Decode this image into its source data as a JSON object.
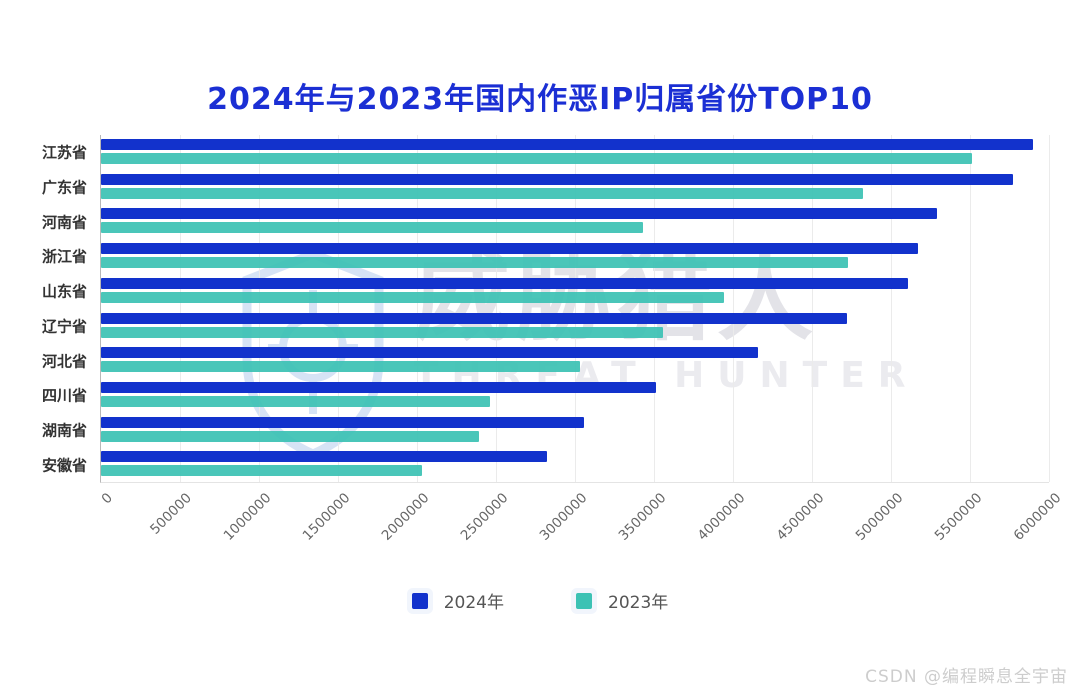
{
  "chart_data": {
    "type": "bar",
    "orientation": "horizontal",
    "title": "2024年与2023年国内作恶IP归属省份TOP10",
    "categories": [
      "江苏省",
      "广东省",
      "河南省",
      "浙江省",
      "山东省",
      "辽宁省",
      "河北省",
      "四川省",
      "湖南省",
      "安徽省"
    ],
    "series": [
      {
        "name": "2024年",
        "color": "#1232cc",
        "values": [
          5900000,
          5770000,
          5290000,
          5170000,
          5110000,
          4720000,
          4160000,
          3510000,
          3060000,
          2820000
        ]
      },
      {
        "name": "2023年",
        "color": "#3cc2b4",
        "values": [
          5510000,
          4820000,
          3430000,
          4730000,
          3940000,
          3560000,
          3030000,
          2460000,
          2390000,
          2030000
        ]
      }
    ],
    "xlim": [
      0,
      6000000
    ],
    "x_ticks": [
      0,
      500000,
      1000000,
      1500000,
      2000000,
      2500000,
      3000000,
      3500000,
      4000000,
      4500000,
      5000000,
      5500000,
      6000000
    ],
    "grid": "vertical",
    "legend_position": "bottom",
    "x_tick_rotation_deg": 45
  },
  "watermark": {
    "brand_cn": "威胁猎人",
    "brand_en": "THREAT HUNTER"
  },
  "credit": "CSDN @编程瞬息全宇宙",
  "colors": {
    "title": "#1b2fd4",
    "bar_2024": "#1232cc",
    "bar_2023": "#3cc2b4",
    "category_label": "#333333",
    "axis_tick_label": "#666666",
    "gridline": "#ebebeb",
    "watermark_text": "#e3e3e8",
    "credit_text": "#cdcdcd"
  }
}
